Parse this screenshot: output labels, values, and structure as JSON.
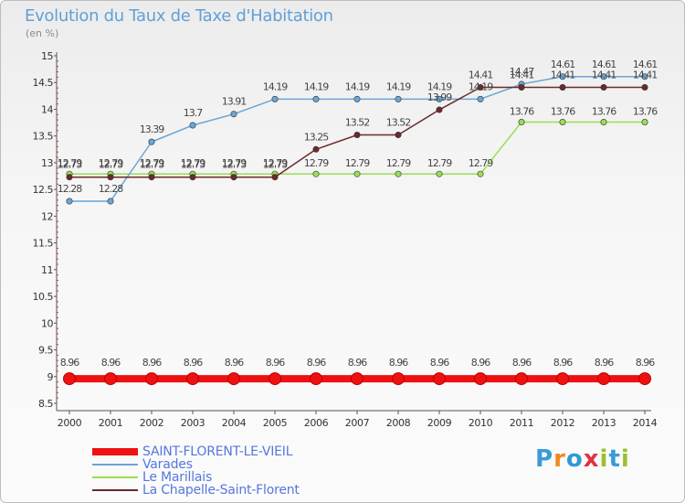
{
  "chart_data": {
    "type": "line",
    "title": "Evolution du Taux de Taxe d'Habitation",
    "ylabel": "(en %)",
    "xlabel": "",
    "x": [
      "2000",
      "2001",
      "2002",
      "2003",
      "2004",
      "2005",
      "2006",
      "2007",
      "2008",
      "2009",
      "2010",
      "2011",
      "2012",
      "2013",
      "2014"
    ],
    "yticks": [
      "8.5",
      "9",
      "9.5",
      "10",
      "10.5",
      "11",
      "11.5",
      "12",
      "12.5",
      "13",
      "13.5",
      "14",
      "14.5",
      "15"
    ],
    "ylim": [
      8.5,
      15
    ],
    "grid": false,
    "series": [
      {
        "name": "SAINT-FLORENT-LE-VIEIL",
        "color": "#ee1111",
        "values": [
          8.96,
          8.96,
          8.96,
          8.96,
          8.96,
          8.96,
          8.96,
          8.96,
          8.96,
          8.96,
          8.96,
          8.96,
          8.96,
          8.96,
          8.96
        ],
        "labels": [
          "8.96",
          "8.96",
          "8.96",
          "8.96",
          "8.96",
          "8.96",
          "8.96",
          "8.96",
          "8.96",
          "8.96",
          "8.96",
          "8.96",
          "8.96",
          "8.96",
          "8.96"
        ]
      },
      {
        "name": "Varades",
        "color": "#6aa6d6",
        "values": [
          12.28,
          12.28,
          13.39,
          13.7,
          13.91,
          14.19,
          14.19,
          14.19,
          14.19,
          14.19,
          14.19,
          14.47,
          14.61,
          14.61,
          14.61
        ],
        "labels": [
          "12.28",
          "12.28",
          "13.39",
          "13.7",
          "13.91",
          "14.19",
          "14.19",
          "14.19",
          "14.19",
          "14.19",
          "14.19",
          "14.47",
          "14.61",
          "14.61",
          "14.61"
        ]
      },
      {
        "name": "Le Marillais",
        "color": "#99dd55",
        "values": [
          12.79,
          12.79,
          12.79,
          12.79,
          12.79,
          12.79,
          12.79,
          12.79,
          12.79,
          12.79,
          12.79,
          13.76,
          13.76,
          13.76,
          13.76
        ],
        "labels": [
          "12.79",
          "12.79",
          "12.79",
          "12.79",
          "12.79",
          "12.79",
          "12.79",
          "12.79",
          "12.79",
          "12.79",
          "12.79",
          "13.76",
          "13.76",
          "13.76",
          "13.76"
        ]
      },
      {
        "name": "La Chapelle-Saint-Florent",
        "color": "#6b2a2a",
        "values": [
          12.73,
          12.73,
          12.73,
          12.73,
          12.73,
          12.73,
          13.25,
          13.52,
          13.52,
          13.99,
          14.41,
          14.41,
          14.41,
          14.41,
          14.41
        ],
        "labels": [
          "12.73",
          "12.73",
          "12.73",
          "12.73",
          "12.73",
          "12.73",
          "13.25",
          "13.52",
          "13.52",
          "13.99",
          "14.41",
          "14.41",
          "14.41",
          "14.41",
          "14.41"
        ]
      }
    ]
  },
  "logo": {
    "letters": [
      "P",
      "r",
      "o",
      "x",
      "i",
      "t",
      "i"
    ],
    "colors": [
      "#3a9ad9",
      "#ee8a22",
      "#2e9ad6",
      "#dd3344",
      "#9ac030",
      "#3a9ad9",
      "#9ac030"
    ]
  }
}
